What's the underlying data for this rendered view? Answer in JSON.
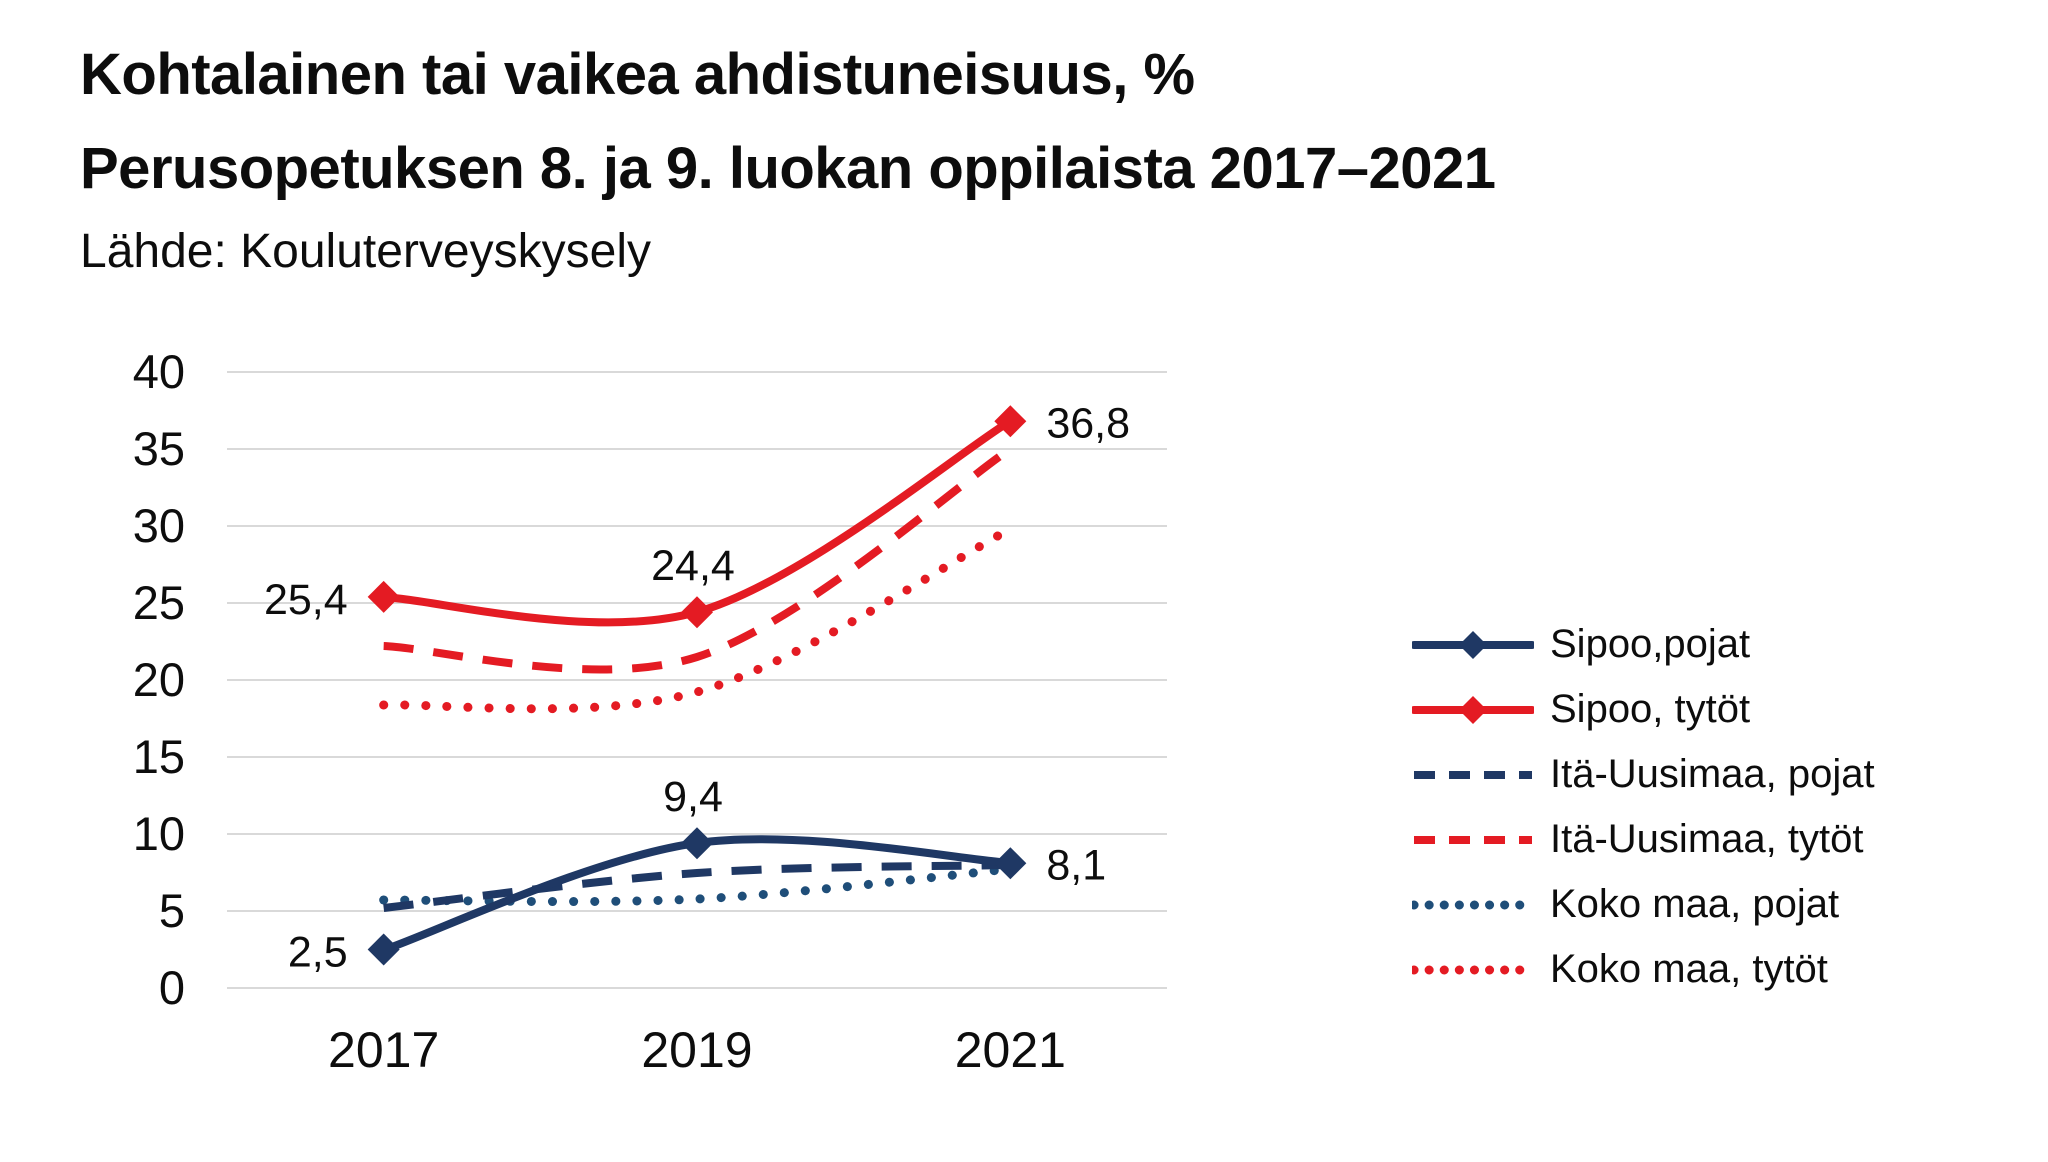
{
  "header": {
    "title_line1": "Kohtalainen tai vaikea ahdistuneisuus, %",
    "title_line2": "Perusopetuksen 8. ja 9. luokan oppilaista 2017–2021",
    "source": "Lähde: Kouluterveyskysely"
  },
  "colors": {
    "navy": "#1f3864",
    "steel_blue": "#1f4e79",
    "red": "#e41b23",
    "gridline": "#d9d9d9",
    "text": "#0d0d0d"
  },
  "chart_data": {
    "type": "line",
    "categories": [
      "2017",
      "2019",
      "2021"
    ],
    "y_ticks": [
      0,
      5,
      10,
      15,
      20,
      25,
      30,
      35,
      40
    ],
    "ylim": [
      0,
      40
    ],
    "grid": true,
    "legend_position": "right",
    "line_interpolation": "smooth",
    "label_positions": [
      "left",
      "above",
      "right"
    ],
    "series": [
      {
        "name": "Sipoo,pojat",
        "values": [
          2.5,
          9.4,
          8.1
        ],
        "labels": [
          "2,5",
          "9,4",
          "8,1"
        ],
        "color_key": "navy",
        "style": "solid",
        "marker": "diamond"
      },
      {
        "name": "Sipoo, tytöt",
        "values": [
          25.4,
          24.4,
          36.8
        ],
        "labels": [
          "25,4",
          "24,4",
          "36,8"
        ],
        "color_key": "red",
        "style": "solid",
        "marker": "diamond"
      },
      {
        "name": "Itä-Uusimaa, pojat",
        "values": [
          5.2,
          7.5,
          8.0
        ],
        "labels": null,
        "color_key": "navy",
        "style": "dashed",
        "marker": null
      },
      {
        "name": "Itä-Uusimaa, tytöt",
        "values": [
          22.2,
          21.5,
          35.0
        ],
        "labels": null,
        "color_key": "red",
        "style": "dashed",
        "marker": null
      },
      {
        "name": "Koko maa, pojat",
        "values": [
          5.7,
          5.8,
          7.7
        ],
        "labels": null,
        "color_key": "steel_blue",
        "style": "dotted",
        "marker": null
      },
      {
        "name": "Koko maa, tytöt",
        "values": [
          18.4,
          19.2,
          29.8
        ],
        "labels": null,
        "color_key": "red",
        "style": "dotted",
        "marker": null
      }
    ]
  }
}
